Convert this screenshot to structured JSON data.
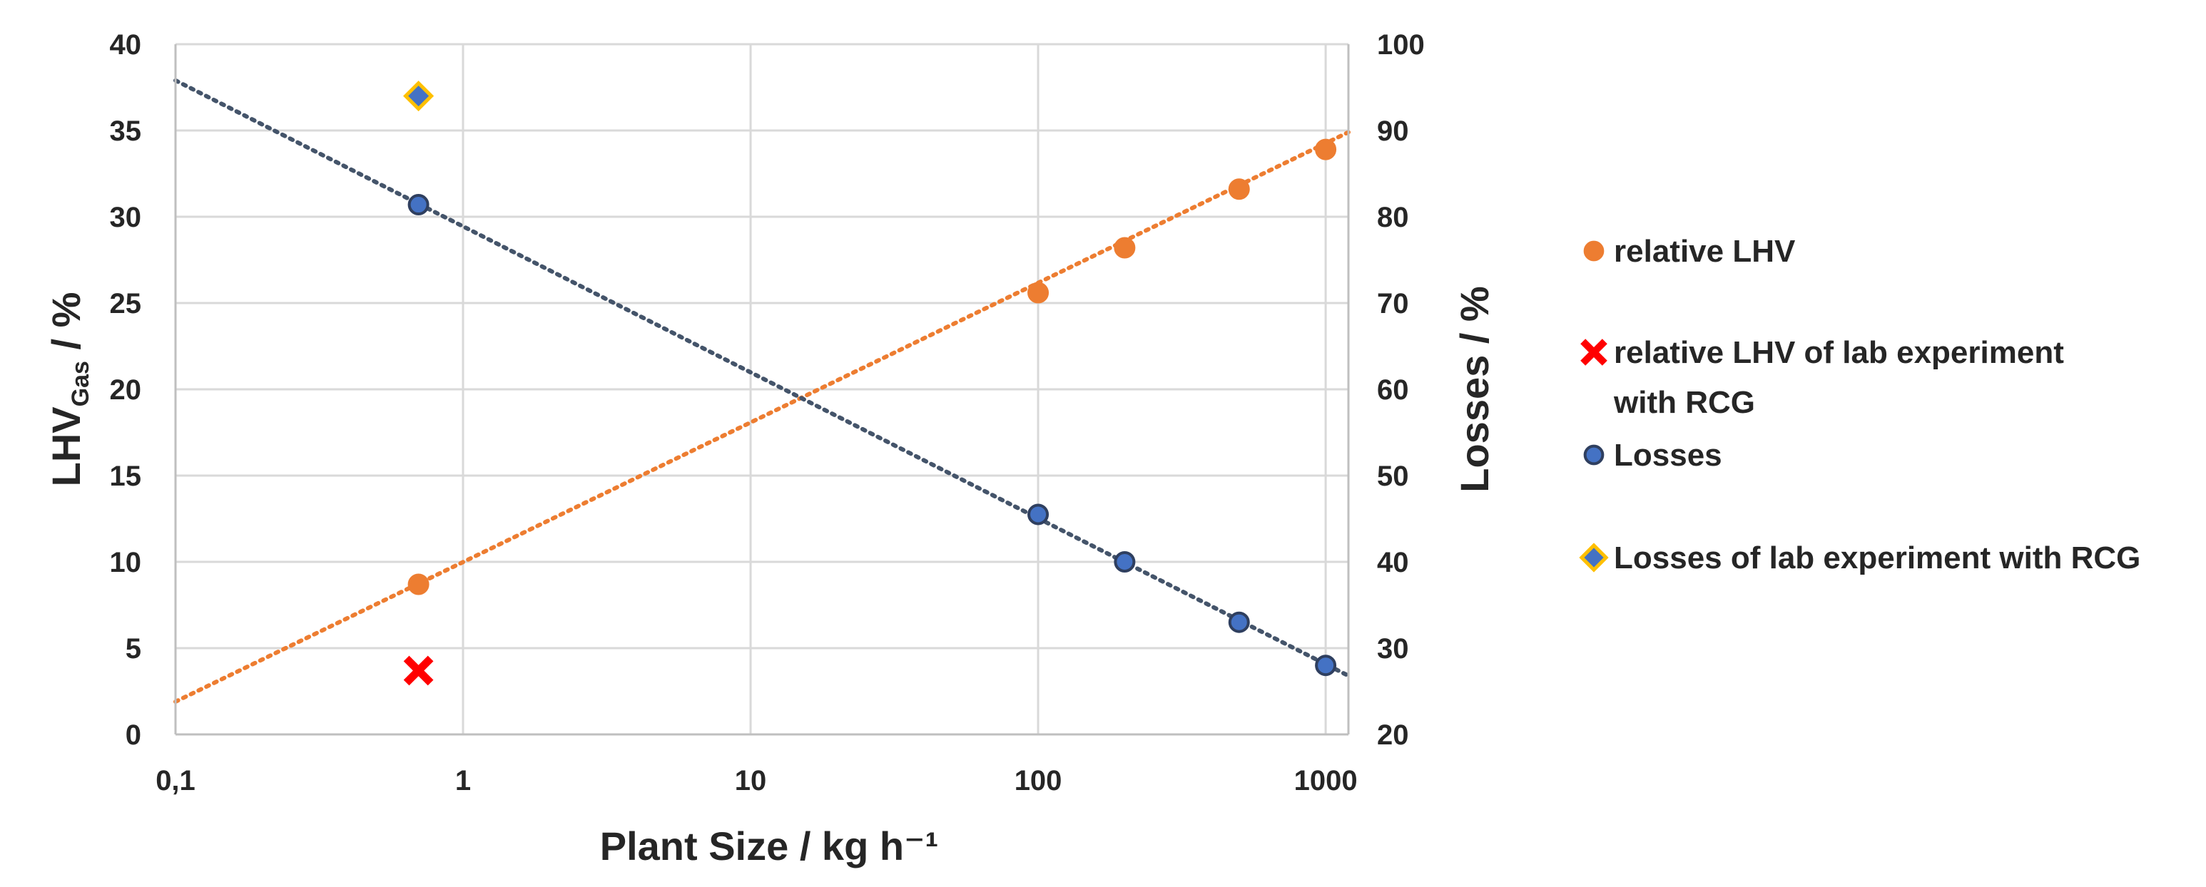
{
  "chart_data": {
    "type": "scatter",
    "x_scale": "log",
    "xlabel": "Plant Size / kg h⁻¹",
    "ylabel_left_main": "LHV",
    "ylabel_left_sub": "Gas",
    "ylabel_left_suffix": " / %",
    "ylabel_right": "Losses / %",
    "xlim": [
      0.1,
      1200
    ],
    "ylim_left": [
      0,
      40
    ],
    "ylim_right": [
      20,
      100
    ],
    "x_ticks": [
      0.1,
      1,
      10,
      100,
      1000
    ],
    "x_tick_labels": [
      "0,1",
      "1",
      "10",
      "100",
      "1000"
    ],
    "y_left_ticks": [
      0,
      5,
      10,
      15,
      20,
      25,
      30,
      35,
      40
    ],
    "y_left_tick_labels": [
      "0",
      "5",
      "10",
      "15",
      "20",
      "25",
      "30",
      "35",
      "40"
    ],
    "y_right_ticks": [
      20,
      30,
      40,
      50,
      60,
      70,
      80,
      90,
      100
    ],
    "y_right_tick_labels": [
      "20",
      "30",
      "40",
      "50",
      "60",
      "70",
      "80",
      "90",
      "100"
    ],
    "grid": true,
    "legend_position": "right",
    "series": [
      {
        "name": "relative LHV",
        "axis": "left",
        "marker": "circle",
        "color": "#ED7D31",
        "x": [
          0.7,
          100,
          200,
          500,
          1000
        ],
        "y": [
          8.7,
          25.6,
          28.2,
          31.6,
          33.9
        ]
      },
      {
        "name": "relative LHV of lab experiment with RCG",
        "axis": "left",
        "marker": "x",
        "color": "#FF0000",
        "x": [
          0.7
        ],
        "y": [
          3.7
        ]
      },
      {
        "name": "Losses",
        "axis": "right",
        "marker": "circle",
        "color": "#4472C4",
        "edge": "#2F3F5F",
        "x": [
          0.7,
          100,
          200,
          500,
          1000
        ],
        "y": [
          81.4,
          45.5,
          40.0,
          33.0,
          28.0
        ]
      },
      {
        "name": "Losses of lab experiment with RCG",
        "axis": "right",
        "marker": "diamond",
        "color": "#4472C4",
        "edge": "#FFC000",
        "x": [
          0.7
        ],
        "y": [
          94.0
        ]
      }
    ],
    "trendlines": [
      {
        "series": "relative LHV",
        "axis": "left",
        "style": "dotted",
        "color": "#ED7D31",
        "x": [
          0.1,
          1200
        ],
        "y": [
          1.9,
          34.9
        ]
      },
      {
        "series": "Losses",
        "axis": "right",
        "style": "dotted",
        "color": "#44546A",
        "x": [
          0.1,
          1200
        ],
        "y": [
          95.8,
          26.8
        ]
      }
    ],
    "legend": [
      {
        "label": "relative LHV",
        "marker": "circle",
        "color": "#ED7D31",
        "edge": "#ED7D31"
      },
      {
        "label": "relative LHV of lab experiment\nwith RCG",
        "marker": "x",
        "color": "#FF0000",
        "edge": "#FF0000"
      },
      {
        "label": "Losses",
        "marker": "circle",
        "color": "#4472C4",
        "edge": "#2F3F5F"
      },
      {
        "label": "Losses of lab experiment with RCG",
        "marker": "diamond",
        "color": "#4472C4",
        "edge": "#FFC000"
      }
    ]
  }
}
